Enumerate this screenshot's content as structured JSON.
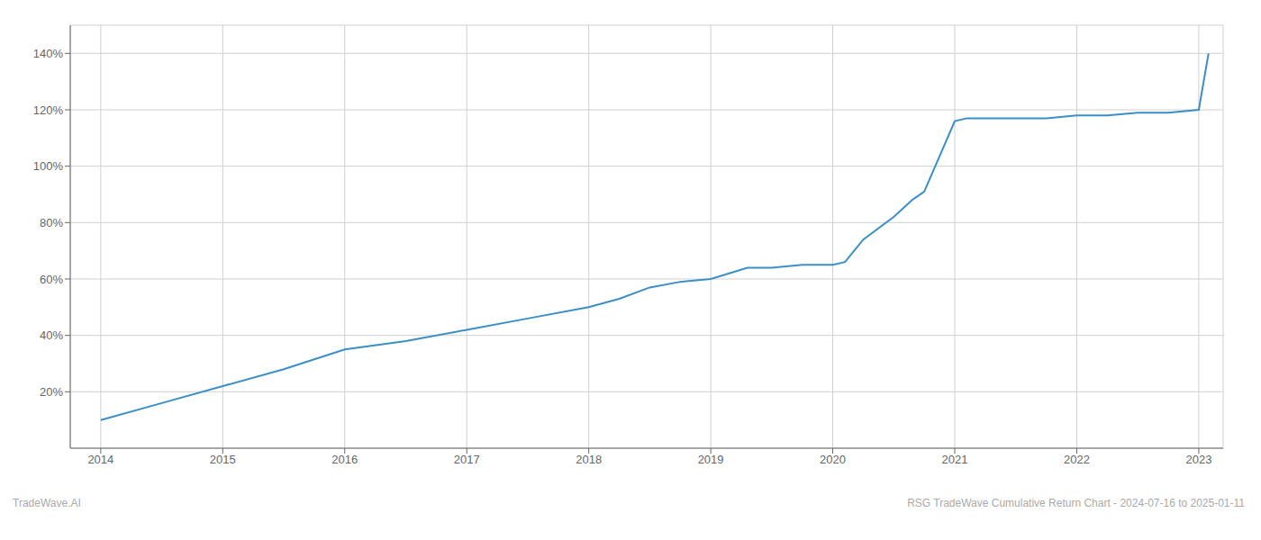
{
  "chart_data": {
    "type": "line",
    "x": [
      2014.0,
      2014.5,
      2015.0,
      2015.5,
      2016.0,
      2016.5,
      2017.0,
      2017.5,
      2018.0,
      2018.25,
      2018.5,
      2018.75,
      2019.0,
      2019.15,
      2019.3,
      2019.5,
      2019.75,
      2020.0,
      2020.1,
      2020.25,
      2020.5,
      2020.65,
      2020.75,
      2021.0,
      2021.1,
      2021.25,
      2021.5,
      2021.75,
      2022.0,
      2022.25,
      2022.5,
      2022.75,
      2023.0,
      2023.08
    ],
    "values": [
      10,
      16,
      22,
      28,
      35,
      38,
      42,
      46,
      50,
      53,
      57,
      59,
      60,
      62,
      64,
      64,
      65,
      65,
      66,
      74,
      82,
      88,
      91,
      116,
      117,
      117,
      117,
      117,
      118,
      118,
      119,
      119,
      120,
      140
    ],
    "color": "#3b8fc4",
    "xlim": [
      2013.75,
      2023.2
    ],
    "xticks": [
      2014,
      2015,
      2016,
      2017,
      2018,
      2019,
      2020,
      2021,
      2022,
      2023
    ],
    "ylim": [
      0,
      150
    ],
    "yticks": [
      {
        "value": 20,
        "label": "20%"
      },
      {
        "value": 40,
        "label": "40%"
      },
      {
        "value": 60,
        "label": "60%"
      },
      {
        "value": 80,
        "label": "80%"
      },
      {
        "value": 100,
        "label": "100%"
      },
      {
        "value": 120,
        "label": "120%"
      },
      {
        "value": 140,
        "label": "140%"
      }
    ],
    "grid": true,
    "annotations": [
      "TradeWave.AI",
      "RSG TradeWave Cumulative Return Chart - 2024-07-16 to 2025-01-11"
    ]
  }
}
